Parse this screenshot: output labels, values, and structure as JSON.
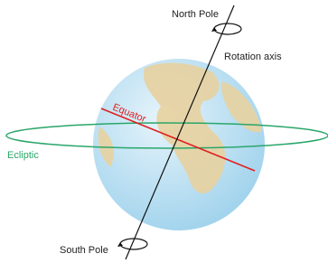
{
  "labels": {
    "north_pole": "North Pole",
    "rotation_axis": "Rotation axis",
    "equator": "Equator",
    "ecliptic": "Ecliptic",
    "south_pole": "South Pole"
  }
}
